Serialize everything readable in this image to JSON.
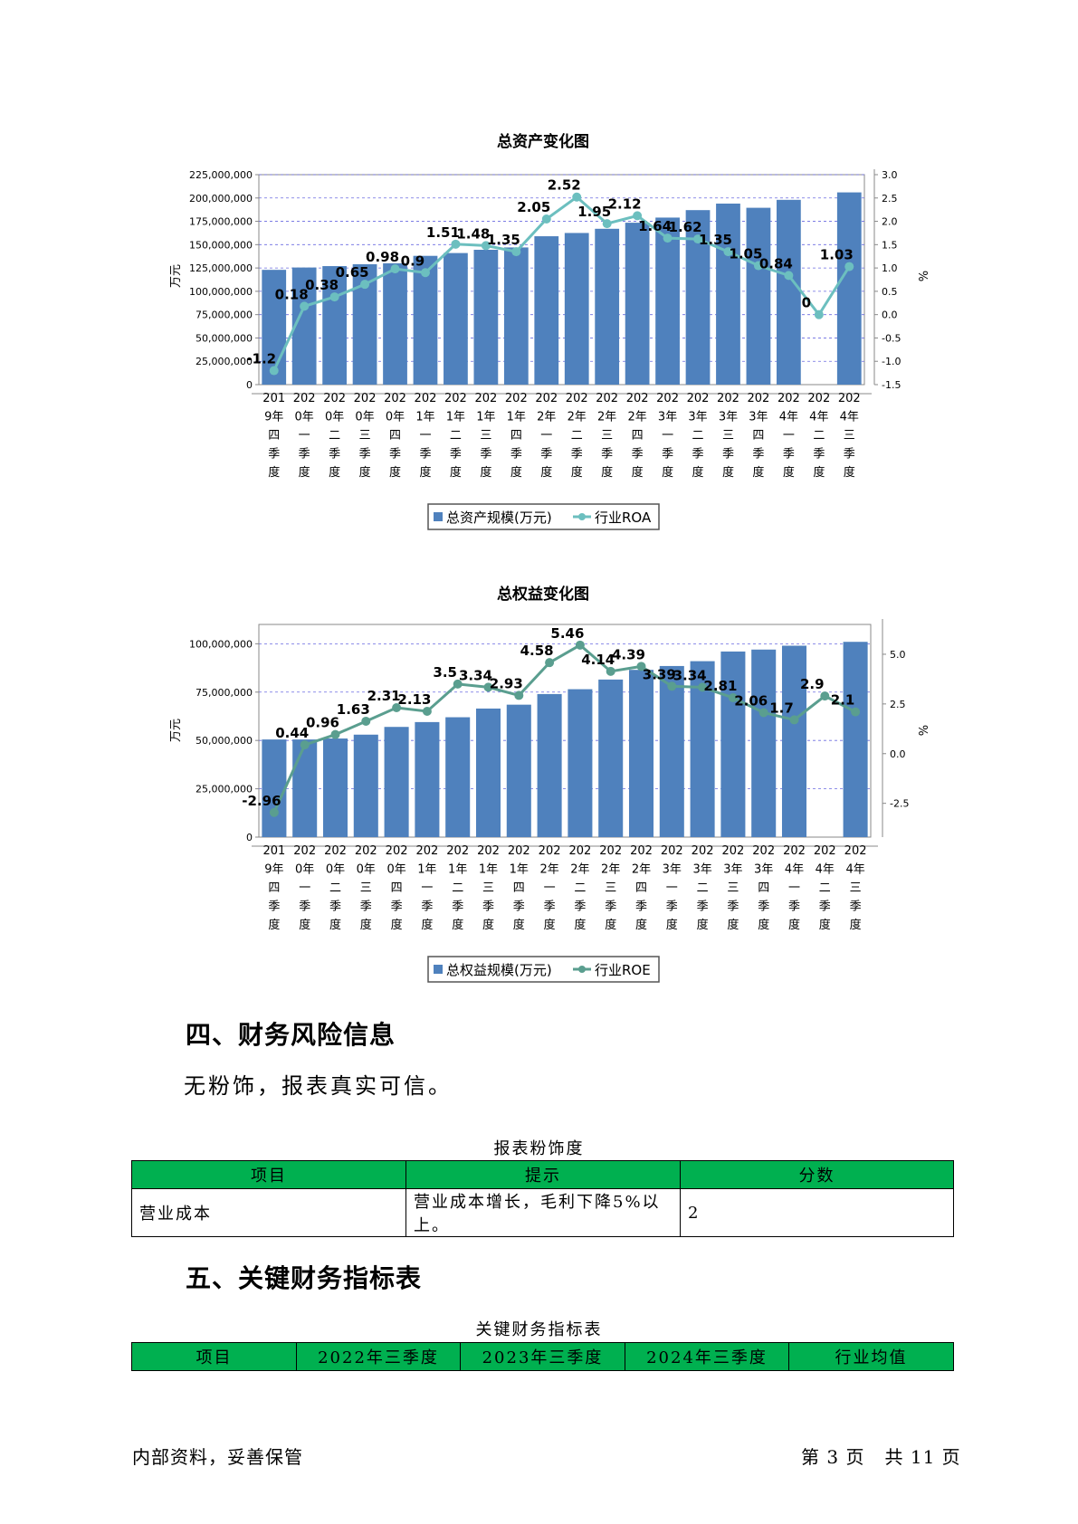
{
  "chart_data": [
    {
      "type": "bar",
      "title": "总资产变化图",
      "categories": [
        "2019年四季度",
        "2020年一季度",
        "2020年二季度",
        "2020年三季度",
        "2020年四季度",
        "2021年一季度",
        "2021年二季度",
        "2021年三季度",
        "2021年四季度",
        "2022年一季度",
        "2022年二季度",
        "2022年三季度",
        "2022年四季度",
        "2023年一季度",
        "2023年二季度",
        "2023年三季度",
        "2023年四季度",
        "2024年一季度",
        "2024年二季度",
        "2024年三季度"
      ],
      "category_labels": [
        "201\n9年\n四\n季\n度",
        "202\n0年\n一\n季\n度",
        "202\n0年\n二\n季\n度",
        "202\n0年\n三\n季\n度",
        "202\n0年\n四\n季\n度",
        "202\n1年\n一\n季\n度",
        "202\n1年\n二\n季\n度",
        "202\n1年\n三\n季\n度",
        "202\n1年\n四\n季\n度",
        "202\n2年\n一\n季\n度",
        "202\n2年\n二\n季\n度",
        "202\n2年\n三\n季\n度",
        "202\n2年\n四\n季\n度",
        "202\n3年\n一\n季\n度",
        "202\n3年\n二\n季\n度",
        "202\n3年\n三\n季\n度",
        "202\n3年\n四\n季\n度",
        "202\n4年\n一\n季\n度",
        "202\n4年\n二\n季\n度",
        "202\n4年\n三\n季\n度"
      ],
      "series": [
        {
          "name": "总资产规模(万元)",
          "type": "bar",
          "axis": "left",
          "color": "#4f81bd",
          "values": [
            123000000,
            125500000,
            127000000,
            129000000,
            130000000,
            138000000,
            141000000,
            144500000,
            147000000,
            159000000,
            162500000,
            167000000,
            173500000,
            179000000,
            187000000,
            194000000,
            189500000,
            198000000,
            null,
            206000000
          ]
        },
        {
          "name": "行业ROA",
          "type": "line",
          "axis": "right",
          "color": "#6cbfbf",
          "values": [
            -1.2,
            0.18,
            0.38,
            0.65,
            0.98,
            0.9,
            1.51,
            1.48,
            1.35,
            2.05,
            2.52,
            1.95,
            2.12,
            1.64,
            1.62,
            1.35,
            1.05,
            0.84,
            0,
            1.03
          ],
          "labels": [
            "-1.2",
            "0.18",
            "0.38",
            "0.65",
            "0.98",
            "0.9",
            "1.51",
            "1.48",
            "1.35",
            "2.05",
            "2.52",
            "1.95",
            "2.12",
            "1.64",
            "1.62",
            "1.35",
            "1.05",
            "0.84",
            "0",
            "1.03"
          ]
        }
      ],
      "left_axis": {
        "label": "万元",
        "min": 0,
        "max": 225000000,
        "ticks": [
          "0",
          "25,000,000",
          "50,000,000",
          "75,000,000",
          "100,000,000",
          "125,000,000",
          "150,000,000",
          "175,000,000",
          "200,000,000",
          "225,000,000"
        ]
      },
      "right_axis": {
        "label": "%",
        "min": -1.5,
        "max": 3.0,
        "ticks": [
          "-1.5",
          "-1.0",
          "-0.5",
          "0.0",
          "0.5",
          "1.0",
          "1.5",
          "2.0",
          "2.5",
          "3.0"
        ]
      },
      "grid": true,
      "legend": "bottom-center"
    },
    {
      "type": "bar",
      "title": "总权益变化图",
      "categories": [
        "2019年四季度",
        "2020年一季度",
        "2020年二季度",
        "2020年三季度",
        "2020年四季度",
        "2021年一季度",
        "2021年二季度",
        "2021年三季度",
        "2021年四季度",
        "2022年一季度",
        "2022年二季度",
        "2022年三季度",
        "2022年四季度",
        "2023年一季度",
        "2023年二季度",
        "2023年三季度",
        "2023年四季度",
        "2024年一季度",
        "2024年二季度",
        "2024年三季度"
      ],
      "category_labels": [
        "201\n9年\n四\n季\n度",
        "202\n0年\n一\n季\n度",
        "202\n0年\n二\n季\n度",
        "202\n0年\n三\n季\n度",
        "202\n0年\n四\n季\n度",
        "202\n1年\n一\n季\n度",
        "202\n1年\n二\n季\n度",
        "202\n1年\n三\n季\n度",
        "202\n1年\n四\n季\n度",
        "202\n2年\n一\n季\n度",
        "202\n2年\n二\n季\n度",
        "202\n2年\n三\n季\n度",
        "202\n2年\n四\n季\n度",
        "202\n3年\n一\n季\n度",
        "202\n3年\n二\n季\n度",
        "202\n3年\n三\n季\n度",
        "202\n3年\n四\n季\n度",
        "202\n4年\n一\n季\n度",
        "202\n4年\n二\n季\n度",
        "202\n4年\n三\n季\n度"
      ],
      "series": [
        {
          "name": "总权益规模(万元)",
          "type": "bar",
          "axis": "left",
          "color": "#4f81bd",
          "values": [
            50500000,
            50500000,
            51000000,
            53000000,
            57000000,
            59500000,
            62000000,
            66500000,
            68500000,
            74000000,
            76500000,
            81500000,
            86500000,
            88500000,
            91000000,
            96000000,
            97000000,
            99000000,
            null,
            101000000
          ]
        },
        {
          "name": "行业ROE",
          "type": "line",
          "axis": "right",
          "color": "#5a9e8f",
          "values": [
            -2.96,
            0.44,
            0.96,
            1.63,
            2.31,
            2.13,
            3.5,
            3.34,
            2.93,
            4.58,
            5.46,
            4.14,
            4.39,
            3.39,
            3.34,
            2.81,
            2.06,
            1.7,
            2.9,
            2.1
          ],
          "labels": [
            "-2.96",
            "0.44",
            "0.96",
            "1.63",
            "2.31",
            "2.13",
            "3.5",
            "3.34",
            "2.93",
            "4.58",
            "5.46",
            "4.14",
            "4.39",
            "3.39",
            "3.34",
            "2.81",
            "2.06",
            "1.7",
            "2.9",
            "2.1"
          ]
        }
      ],
      "left_axis": {
        "label": "万元",
        "min": 0,
        "max": 110000000,
        "ticks": [
          "0",
          "25,000,000",
          "50,000,000",
          "75,000,000",
          "100,000,000"
        ]
      },
      "right_axis": {
        "label": "%",
        "min": -4.2,
        "max": 6.5,
        "ticks": [
          "-2.5",
          "0.0",
          "2.5",
          "5.0"
        ]
      },
      "grid": true,
      "legend": "bottom-center"
    }
  ],
  "section4": {
    "title": "四、财务风险信息",
    "text": "无粉饰，报表真实可信。",
    "table_caption": "报表粉饰度",
    "headers": [
      "项目",
      "提示",
      "分数"
    ],
    "rows": [
      [
        "营业成本",
        "营业成本增长，毛利下降5%以上。",
        "2"
      ]
    ]
  },
  "section5": {
    "title": "五、关键财务指标表",
    "table_caption": "关键财务指标表",
    "headers": [
      "项目",
      "2022年三季度",
      "2023年三季度",
      "2024年三季度",
      "行业均值"
    ]
  },
  "footer": {
    "left": "内部资料，妥善保管",
    "right": "第 3 页   共 11 页"
  },
  "colors": {
    "header_green": "#00b050",
    "bar_blue": "#4f81bd"
  }
}
